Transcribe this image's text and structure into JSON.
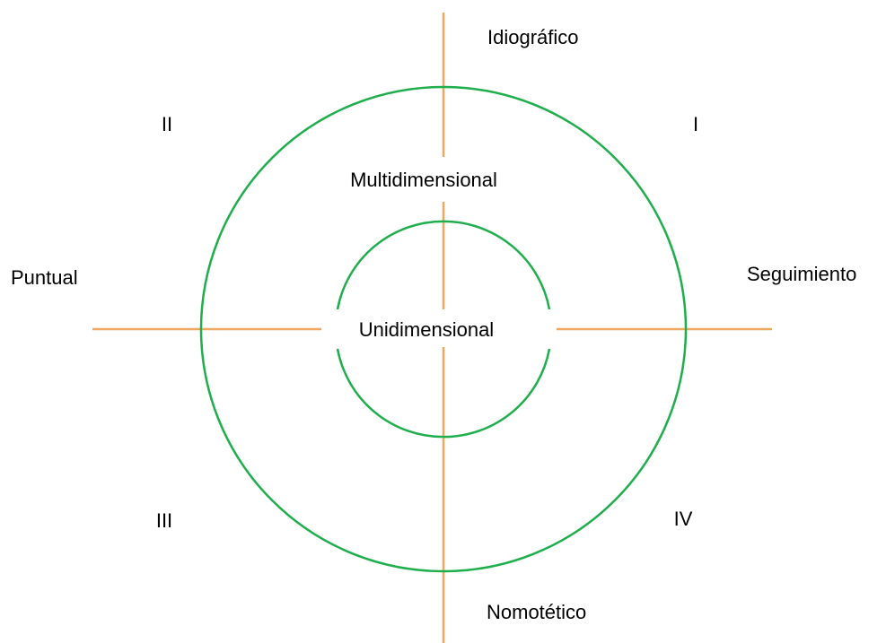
{
  "axes": {
    "top": "Idiográfico",
    "bottom": "Nomotético",
    "left": "Puntual",
    "right": "Seguimiento"
  },
  "quadrants": [
    "I",
    "II",
    "III",
    "IV"
  ],
  "rings": {
    "outer": "Multidimensional",
    "inner": "Unidimensional"
  }
}
